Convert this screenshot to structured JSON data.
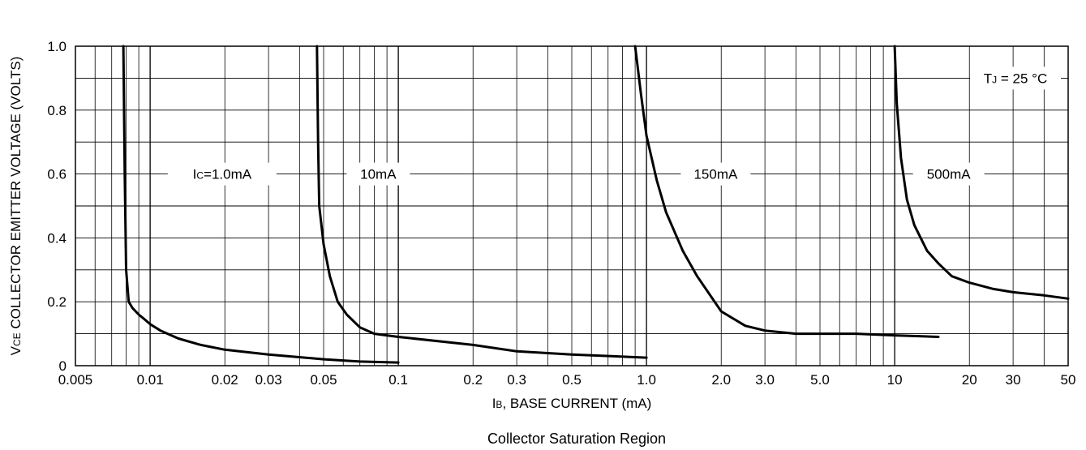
{
  "chart_data": {
    "type": "line",
    "title": "",
    "caption": "Collector Saturation Region",
    "xlabel": "IB, BASE CURRENT (mA)",
    "xlabel_parts": {
      "symbol": "I",
      "subscript": "B",
      "rest": ", BASE CURRENT (mA)"
    },
    "ylabel": "VCE COLLECTOR EMITTER VOLTAGE (VOLTS)",
    "ylabel_parts": {
      "symbol": "V",
      "subscript": "CE",
      "rest": " COLLECTOR EMITTER VOLTAGE (VOLTS)"
    },
    "x_scale": "log",
    "xlim": [
      0.005,
      50
    ],
    "ylim": [
      0,
      1.0
    ],
    "grid": true,
    "x_ticks": [
      {
        "value": 0.005,
        "label": "0.005"
      },
      {
        "value": 0.01,
        "label": "0.01"
      },
      {
        "value": 0.02,
        "label": "0.02"
      },
      {
        "value": 0.03,
        "label": "0.03"
      },
      {
        "value": 0.05,
        "label": "0.05"
      },
      {
        "value": 0.1,
        "label": "0.1"
      },
      {
        "value": 0.2,
        "label": "0.2"
      },
      {
        "value": 0.3,
        "label": "0.3"
      },
      {
        "value": 0.5,
        "label": "0.5"
      },
      {
        "value": 1.0,
        "label": "1.0"
      },
      {
        "value": 2.0,
        "label": "2.0"
      },
      {
        "value": 3.0,
        "label": "3.0"
      },
      {
        "value": 5.0,
        "label": "5.0"
      },
      {
        "value": 10,
        "label": "10"
      },
      {
        "value": 20,
        "label": "20"
      },
      {
        "value": 30,
        "label": "30"
      },
      {
        "value": 50,
        "label": "50"
      }
    ],
    "y_ticks": [
      {
        "value": 0,
        "label": "0"
      },
      {
        "value": 0.2,
        "label": "0.2"
      },
      {
        "value": 0.4,
        "label": "0.4"
      },
      {
        "value": 0.6,
        "label": "0.6"
      },
      {
        "value": 0.8,
        "label": "0.8"
      },
      {
        "value": 1.0,
        "label": "1.0"
      }
    ],
    "annotation": {
      "symbol": "T",
      "subscript": "J",
      "rest": " = 25 °C"
    },
    "series": [
      {
        "name": "IC=1.0mA",
        "label_parts": {
          "symbol": "I",
          "subscript": "C",
          "rest": "=1.0mA"
        },
        "x": [
          0.0078,
          0.0079,
          0.008,
          0.0082,
          0.0085,
          0.009,
          0.0095,
          0.01,
          0.011,
          0.013,
          0.016,
          0.02,
          0.03,
          0.05,
          0.07,
          0.1
        ],
        "y": [
          1.0,
          0.6,
          0.3,
          0.2,
          0.18,
          0.16,
          0.145,
          0.13,
          0.11,
          0.085,
          0.065,
          0.05,
          0.035,
          0.02,
          0.013,
          0.01
        ]
      },
      {
        "name": "10mA",
        "x": [
          0.047,
          0.0475,
          0.048,
          0.05,
          0.053,
          0.057,
          0.062,
          0.07,
          0.08,
          0.1,
          0.2,
          0.3,
          0.5,
          1.0
        ],
        "y": [
          1.0,
          0.7,
          0.5,
          0.38,
          0.28,
          0.2,
          0.16,
          0.12,
          0.1,
          0.09,
          0.065,
          0.045,
          0.035,
          0.025
        ]
      },
      {
        "name": "150mA",
        "x": [
          0.9,
          0.95,
          1.0,
          1.1,
          1.2,
          1.4,
          1.6,
          2.0,
          2.5,
          3.0,
          4.0,
          5.0,
          7.0,
          10.0,
          15.0
        ],
        "y": [
          1.0,
          0.85,
          0.72,
          0.58,
          0.48,
          0.36,
          0.28,
          0.17,
          0.125,
          0.11,
          0.1,
          0.1,
          0.1,
          0.095,
          0.09
        ]
      },
      {
        "name": "500mA",
        "x": [
          10.0,
          10.2,
          10.6,
          11.2,
          12.0,
          13.5,
          15.0,
          17.0,
          20.0,
          25.0,
          30.0,
          40.0,
          50.0
        ],
        "y": [
          1.0,
          0.82,
          0.65,
          0.52,
          0.44,
          0.36,
          0.32,
          0.28,
          0.26,
          0.24,
          0.23,
          0.22,
          0.21
        ]
      }
    ]
  }
}
